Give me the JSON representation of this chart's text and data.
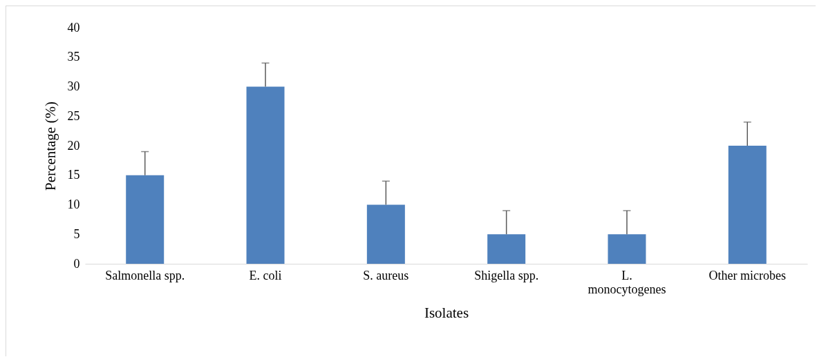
{
  "chart_data": {
    "type": "bar",
    "xlabel": "Isolates",
    "ylabel": "Percentage (%)",
    "categories": [
      "Salmonella spp.",
      "E. coli",
      "S. aureus",
      "Shigella spp.",
      "L. monocytogenes",
      "Other microbes"
    ],
    "values": [
      15,
      30,
      10,
      5,
      5,
      20
    ],
    "errors": [
      [
        15,
        19
      ],
      [
        30,
        34
      ],
      [
        10,
        14
      ],
      [
        5,
        9
      ],
      [
        5,
        9
      ],
      [
        20,
        24
      ]
    ],
    "color": "#4f81bd",
    "ylim": [
      0,
      40
    ],
    "yticks": [
      0,
      5,
      10,
      15,
      20,
      25,
      30,
      35,
      40
    ],
    "grid": false
  }
}
